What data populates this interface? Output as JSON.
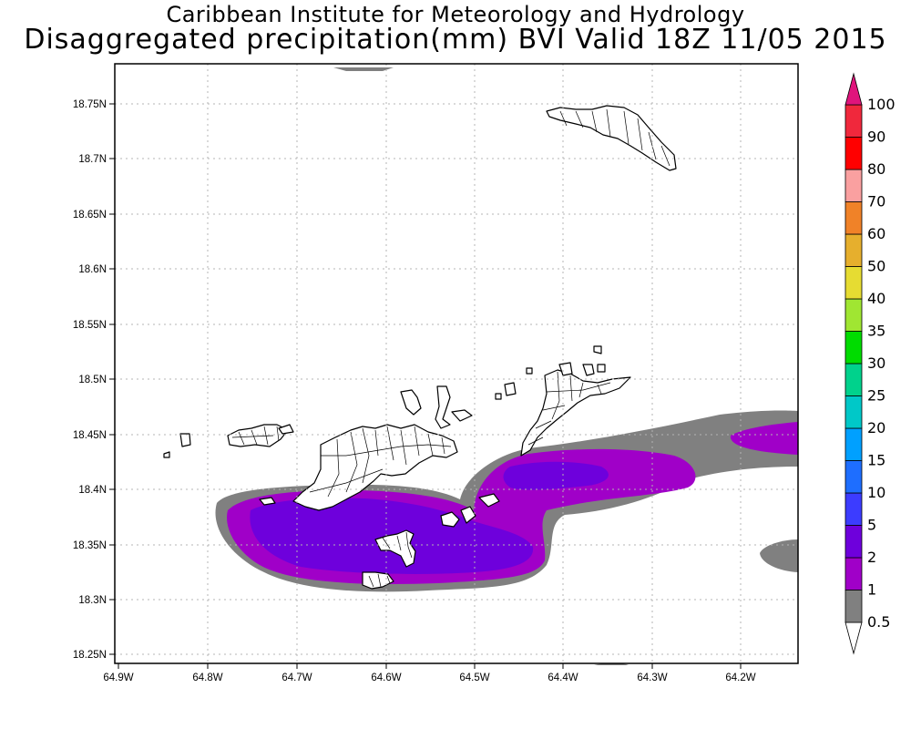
{
  "title": "Caribbean Institute for Meteorology and Hydrology",
  "subtitle": "Disaggregated precipitation(mm) BVI Valid 18Z 11/05 2015",
  "map": {
    "region": "BVI",
    "lon_range": [
      -64.9,
      -64.14
    ],
    "lat_range": [
      18.24,
      18.8
    ],
    "grid": true,
    "lon_ticks": [
      "64.9W",
      "64.8W",
      "64.7W",
      "64.6W",
      "64.5W",
      "64.4W",
      "64.3W",
      "64.2W"
    ],
    "lat_ticks": [
      "18.25N",
      "18.3N",
      "18.35N",
      "18.4N",
      "18.45N",
      "18.5N",
      "18.55N",
      "18.6N",
      "18.65N",
      "18.7N",
      "18.75N"
    ]
  },
  "colorbar": {
    "labels": [
      "0.5",
      "1",
      "2",
      "5",
      "10",
      "15",
      "20",
      "25",
      "30",
      "35",
      "40",
      "50",
      "60",
      "70",
      "80",
      "90",
      "100"
    ],
    "colors": [
      "#ffffff",
      "#808080",
      "#a000c8",
      "#6e00dc",
      "#3c3cff",
      "#1e6eff",
      "#00a0ff",
      "#00c8c8",
      "#00d28c",
      "#00dc00",
      "#a0e632",
      "#e6dc32",
      "#e6af2d",
      "#f08228",
      "#faa0a0",
      "#ff0000",
      "#f0283c",
      "#e0147c"
    ]
  },
  "colors": {
    "land_outline": "#000000",
    "grid": "#b4b4b4"
  }
}
